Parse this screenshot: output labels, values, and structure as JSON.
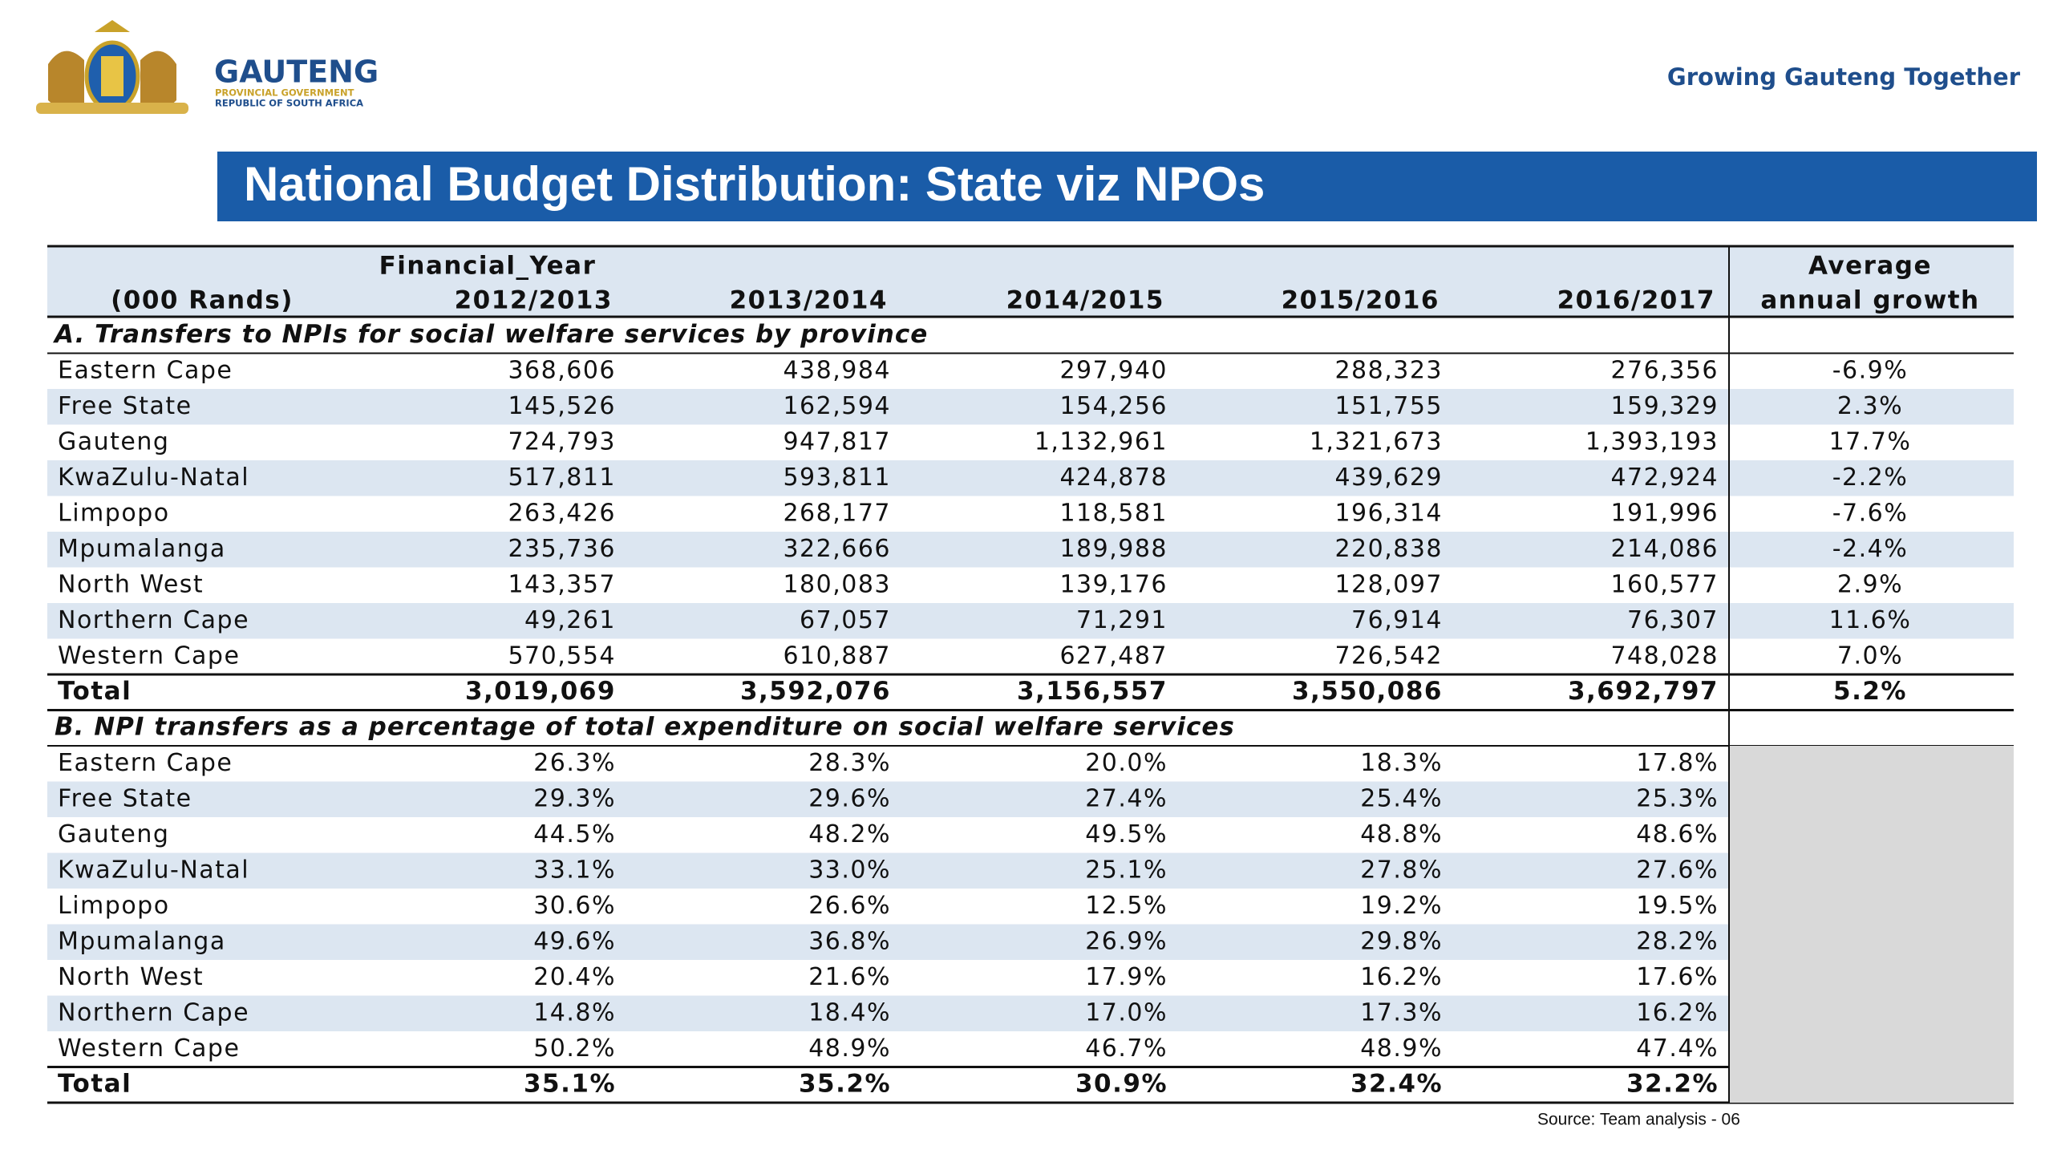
{
  "header": {
    "logo_name": "GAUTENG",
    "logo_sub1": "PROVINCIAL GOVERNMENT",
    "logo_sub2": "REPUBLIC OF SOUTH AFRICA",
    "tagline": "Growing Gauteng Together"
  },
  "title": "National Budget Distribution: State viz NPOs",
  "table": {
    "units": "(000 Rands)",
    "year_group": "Financial_Year",
    "columns": [
      "2012/2013",
      "2013/2014",
      "2014/2015",
      "2015/2016",
      "2016/2017"
    ],
    "growth_header": [
      "Average",
      "annual growth"
    ],
    "highlight_color": "#c0282d",
    "sections": [
      {
        "title": "A. Transfers to NPIs for social welfare services by province",
        "rows": [
          {
            "label": "Eastern Cape",
            "values": [
              "368,606",
              "438,984",
              "297,940",
              "288,323",
              "276,356"
            ],
            "growth": "-6.9%",
            "highlighted": [
              0,
              1
            ]
          },
          {
            "label": "Free State",
            "values": [
              "145,526",
              "162,594",
              "154,256",
              "151,755",
              "159,329"
            ],
            "growth": "2.3%",
            "highlighted": []
          },
          {
            "label": "Gauteng",
            "values": [
              "724,793",
              "947,817",
              "1,132,961",
              "1,321,673",
              "1,393,193"
            ],
            "growth": "17.7%",
            "highlighted": []
          },
          {
            "label": "KwaZulu-Natal",
            "values": [
              "517,811",
              "593,811",
              "424,878",
              "439,629",
              "472,924"
            ],
            "growth": "-2.2%",
            "highlighted": [
              0,
              1
            ]
          },
          {
            "label": "Limpopo",
            "values": [
              "263,426",
              "268,177",
              "118,581",
              "196,314",
              "191,996"
            ],
            "growth": "-7.6%",
            "highlighted": [
              0,
              1
            ]
          },
          {
            "label": "Mpumalanga",
            "values": [
              "235,736",
              "322,666",
              "189,988",
              "220,838",
              "214,086"
            ],
            "growth": "-2.4%",
            "highlighted": [
              0,
              1
            ]
          },
          {
            "label": "North West",
            "values": [
              "143,357",
              "180,083",
              "139,176",
              "128,097",
              "160,577"
            ],
            "growth": "2.9%",
            "highlighted": [
              0,
              1
            ]
          },
          {
            "label": "Northern Cape",
            "values": [
              "49,261",
              "67,057",
              "71,291",
              "76,914",
              "76,307"
            ],
            "growth": "11.6%",
            "highlighted": []
          },
          {
            "label": "Western Cape",
            "values": [
              "570,554",
              "610,887",
              "627,487",
              "726,542",
              "748,028"
            ],
            "growth": "7.0%",
            "highlighted": []
          }
        ],
        "total": {
          "label": "Total",
          "values": [
            "3,019,069",
            "3,592,076",
            "3,156,557",
            "3,550,086",
            "3,692,797"
          ],
          "growth": "5.2%"
        }
      },
      {
        "title": "B. NPI transfers as a percentage of total expenditure on social welfare services",
        "rows": [
          {
            "label": "Eastern Cape",
            "values": [
              "26.3%",
              "28.3%",
              "20.0%",
              "18.3%",
              "17.8%"
            ]
          },
          {
            "label": "Free State",
            "values": [
              "29.3%",
              "29.6%",
              "27.4%",
              "25.4%",
              "25.3%"
            ]
          },
          {
            "label": "Gauteng",
            "values": [
              "44.5%",
              "48.2%",
              "49.5%",
              "48.8%",
              "48.6%"
            ]
          },
          {
            "label": "KwaZulu-Natal",
            "values": [
              "33.1%",
              "33.0%",
              "25.1%",
              "27.8%",
              "27.6%"
            ]
          },
          {
            "label": "Limpopo",
            "values": [
              "30.6%",
              "26.6%",
              "12.5%",
              "19.2%",
              "19.5%"
            ]
          },
          {
            "label": "Mpumalanga",
            "values": [
              "49.6%",
              "36.8%",
              "26.9%",
              "29.8%",
              "28.2%"
            ]
          },
          {
            "label": "North West",
            "values": [
              "20.4%",
              "21.6%",
              "17.9%",
              "16.2%",
              "17.6%"
            ]
          },
          {
            "label": "Northern Cape",
            "values": [
              "14.8%",
              "18.4%",
              "17.0%",
              "17.3%",
              "16.2%"
            ]
          },
          {
            "label": "Western Cape",
            "values": [
              "50.2%",
              "48.9%",
              "46.7%",
              "48.9%",
              "47.4%"
            ]
          }
        ],
        "total": {
          "label": "Total",
          "values": [
            "35.1%",
            "35.2%",
            "30.9%",
            "32.4%",
            "32.2%"
          ]
        }
      }
    ]
  },
  "source": "Source: Team analysis - 06"
}
